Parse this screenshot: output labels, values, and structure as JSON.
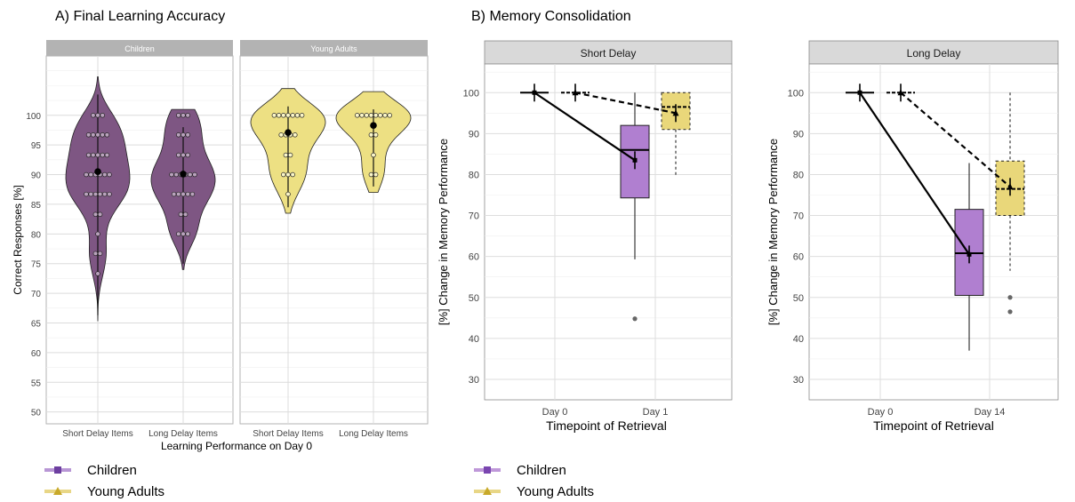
{
  "panel_a": {
    "title": "A) Final Learning Accuracy",
    "chart_data": {
      "type": "violin",
      "facets": [
        "Children",
        "Young Adults"
      ],
      "categories": [
        "Short Delay Items",
        "Long Delay Items"
      ],
      "xlabel": "Learning Performance on Day 0",
      "ylabel": "Correct Responses [%]",
      "ylim": [
        48,
        110
      ],
      "yticks": [
        50,
        55,
        60,
        65,
        70,
        75,
        80,
        85,
        90,
        95,
        100
      ],
      "grid": true,
      "series": [
        {
          "name": "Children",
          "color": "#7e5683",
          "groups": [
            {
              "category": "Short Delay Items",
              "mean": 90.5,
              "range": [
                65.3,
                106.5
              ],
              "points": [
                100,
                100,
                100,
                96.7,
                96.7,
                96.7,
                96.7,
                96.7,
                93.3,
                93.3,
                93.3,
                93.3,
                93.3,
                90,
                90,
                90,
                90,
                90,
                90,
                86.7,
                86.7,
                86.7,
                86.7,
                86.7,
                86.7,
                83.3,
                83.3,
                80,
                76.7,
                76.7,
                73.3
              ]
            },
            {
              "category": "Long Delay Items",
              "mean": 90.1,
              "range": [
                74,
                101
              ],
              "points": [
                100,
                100,
                100,
                96.7,
                96.7,
                96.7,
                93.3,
                93.3,
                93.3,
                90,
                90,
                90,
                90,
                90,
                90,
                86.7,
                86.7,
                86.7,
                86.7,
                86.7,
                83.3,
                83.3,
                80,
                80,
                80
              ]
            }
          ]
        },
        {
          "name": "Young Adults",
          "color": "#ede083",
          "groups": [
            {
              "category": "Short Delay Items",
              "mean": 97.1,
              "range": [
                83.5,
                104.5
              ],
              "points": [
                100,
                100,
                100,
                100,
                100,
                100,
                100,
                96.7,
                96.7,
                96.7,
                96.7,
                93.3,
                93.3,
                90,
                90,
                90,
                86.7
              ]
            },
            {
              "category": "Long Delay Items",
              "mean": 98.3,
              "range": [
                87,
                104
              ],
              "points": [
                100,
                100,
                100,
                100,
                100,
                100,
                100,
                100,
                96.7,
                96.7,
                93.3,
                90,
                90
              ]
            }
          ]
        }
      ]
    },
    "legend": [
      {
        "label": "Children",
        "color": "#9b6bc4",
        "marker": "square"
      },
      {
        "label": "Young Adults",
        "color": "#e6d27a",
        "marker": "triangle"
      }
    ]
  },
  "panel_b": {
    "title": "B) Memory Consolidation",
    "chart_data": [
      {
        "type": "box",
        "facet": "Short Delay",
        "categories": [
          "Day 0",
          "Day 1"
        ],
        "xlabel": "Timepoint of Retrieval",
        "ylabel": "[%] Change in Memory Performance",
        "ylim": [
          25,
          107
        ],
        "yticks": [
          30,
          40,
          50,
          60,
          70,
          80,
          90,
          100
        ],
        "series": [
          {
            "name": "Children",
            "color": "#b07fd0",
            "line": "solid",
            "means": [
              100,
              83.5
            ],
            "boxes": [
              {
                "category": "Day 0",
                "min": 100,
                "q1": 100,
                "median": 100,
                "q3": 100,
                "max": 100,
                "outliers": []
              },
              {
                "category": "Day 1",
                "min": 59.3,
                "q1": 74.3,
                "median": 86,
                "q3": 92,
                "max": 100,
                "outliers": [
                  44.8
                ]
              }
            ]
          },
          {
            "name": "Young Adults",
            "color": "#e9d77a",
            "line": "dashed",
            "means": [
              100,
              95
            ],
            "boxes": [
              {
                "category": "Day 0",
                "min": 100,
                "q1": 100,
                "median": 100,
                "q3": 100,
                "max": 100,
                "outliers": []
              },
              {
                "category": "Day 1",
                "min": 79.5,
                "q1": 91,
                "median": 96.5,
                "q3": 100,
                "max": 100,
                "outliers": []
              }
            ]
          }
        ]
      },
      {
        "type": "box",
        "facet": "Long Delay",
        "categories": [
          "Day 0",
          "Day 14"
        ],
        "xlabel": "Timepoint of Retrieval",
        "ylabel": "[%] Change in Memory Performance",
        "ylim": [
          25,
          107
        ],
        "yticks": [
          30,
          40,
          50,
          60,
          70,
          80,
          90,
          100
        ],
        "series": [
          {
            "name": "Children",
            "color": "#b07fd0",
            "line": "solid",
            "means": [
              100,
              60.5
            ],
            "boxes": [
              {
                "category": "Day 0",
                "min": 100,
                "q1": 100,
                "median": 100,
                "q3": 100,
                "max": 100,
                "outliers": []
              },
              {
                "category": "Day 14",
                "min": 37,
                "q1": 50.5,
                "median": 60.8,
                "q3": 71.5,
                "max": 82.8,
                "outliers": []
              }
            ]
          },
          {
            "name": "Young Adults",
            "color": "#e9d77a",
            "line": "dashed",
            "means": [
              100,
              77
            ],
            "boxes": [
              {
                "category": "Day 0",
                "min": 100,
                "q1": 100,
                "median": 100,
                "q3": 100,
                "max": 100,
                "outliers": []
              },
              {
                "category": "Day 14",
                "min": 56.5,
                "q1": 70,
                "median": 76.5,
                "q3": 83.3,
                "max": 100,
                "outliers": [
                  50,
                  46.5
                ]
              }
            ]
          }
        ]
      }
    ],
    "legend": [
      {
        "label": "Children",
        "color": "#b07fd0",
        "marker": "square"
      },
      {
        "label": "Young Adults",
        "color": "#e6d27a",
        "marker": "triangle"
      }
    ]
  }
}
